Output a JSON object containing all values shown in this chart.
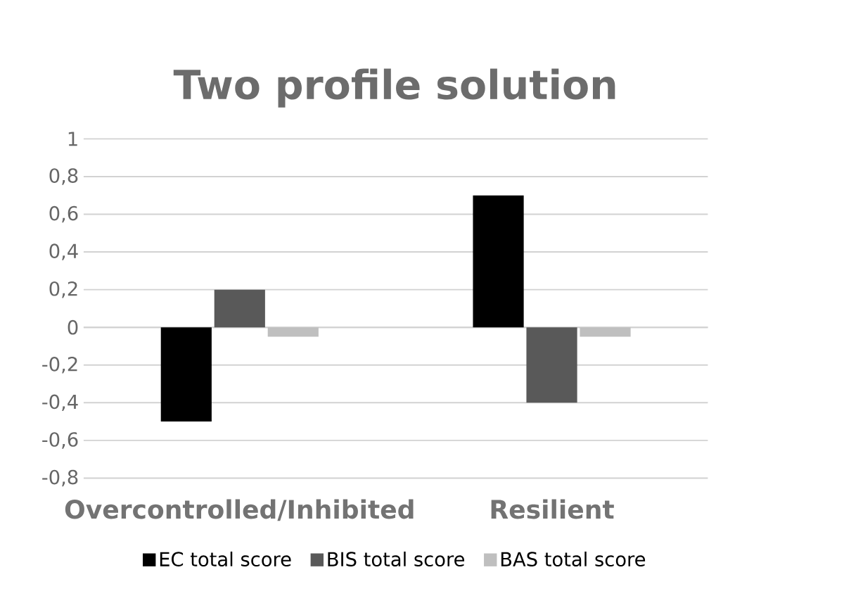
{
  "chart_data": {
    "type": "bar",
    "title": "Two profile solution",
    "categories": [
      "Overcontrolled/Inhibited",
      "Resilient"
    ],
    "series": [
      {
        "name": "EC total score",
        "color": "#000000",
        "values": [
          -0.5,
          0.7
        ]
      },
      {
        "name": "BIS total score",
        "color": "#595959",
        "values": [
          0.2,
          -0.4
        ]
      },
      {
        "name": "BAS total score",
        "color": "#bfbfbf",
        "values": [
          -0.05,
          -0.05
        ]
      }
    ],
    "ylim": [
      -0.8,
      1
    ],
    "yticks": [
      {
        "value": -0.8,
        "label": "-0,8"
      },
      {
        "value": -0.6,
        "label": "-0,6"
      },
      {
        "value": -0.4,
        "label": "-0,4"
      },
      {
        "value": -0.2,
        "label": "-0,2"
      },
      {
        "value": 0,
        "label": "0"
      },
      {
        "value": 0.2,
        "label": "0,2"
      },
      {
        "value": 0.4,
        "label": "0,4"
      },
      {
        "value": 0.6,
        "label": "0,6"
      },
      {
        "value": 0.8,
        "label": "0,8"
      },
      {
        "value": 1,
        "label": "1"
      }
    ],
    "grid": "y",
    "legend": "bottom"
  }
}
